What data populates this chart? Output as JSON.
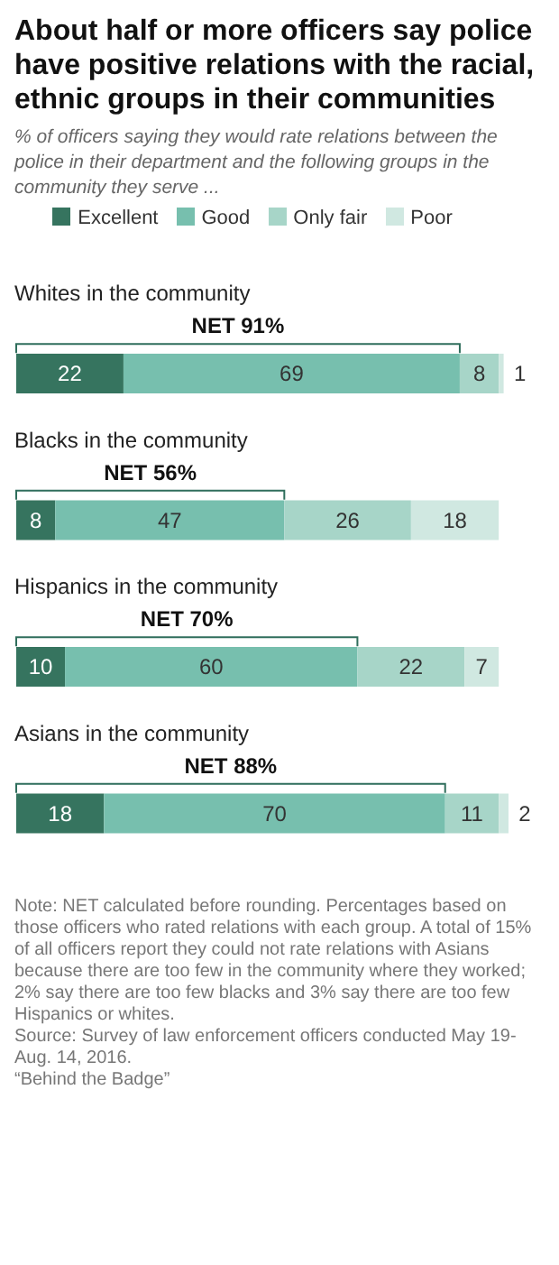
{
  "chart_data": {
    "type": "bar",
    "orientation": "horizontal",
    "stacked": true,
    "title": "About half or more officers say police have positive relations with the racial, ethnic groups in their communities",
    "subtitle": "% of officers saying they would rate relations between the police in their department and the following groups in the community they serve ...",
    "categories": [
      "Whites in the community",
      "Blacks in the community",
      "Hispanics in the community",
      "Asians in the community"
    ],
    "series": [
      {
        "name": "Excellent",
        "color": "#36745f",
        "values": [
          22,
          8,
          10,
          18
        ]
      },
      {
        "name": "Good",
        "color": "#77bfae",
        "values": [
          69,
          47,
          60,
          70
        ]
      },
      {
        "name": "Only fair",
        "color": "#a7d5c8",
        "values": [
          8,
          26,
          22,
          11
        ]
      },
      {
        "name": "Poor",
        "color": "#d0e8e1",
        "values": [
          1,
          18,
          7,
          2
        ]
      }
    ],
    "xlim": [
      0,
      101
    ],
    "tick_labels": "y",
    "data_labels": true,
    "legend": "top",
    "grid": false,
    "annotations": [
      "NET 91%",
      "NET 56%",
      "NET 70%",
      "NET 88%",
      "Note: NET calculated before rounding. Percentages based on those officers who rated relations with each group. A total of 15% of all officers report they could not rate relations with Asians because there are too few in the community where they worked; 2% say there are too few blacks and 3% say there are too few Hispanics or whites.",
      "Source: Survey of law enforcement officers conducted May 19-Aug. 14, 2016.",
      "“Behind the Badge”"
    ]
  }
}
